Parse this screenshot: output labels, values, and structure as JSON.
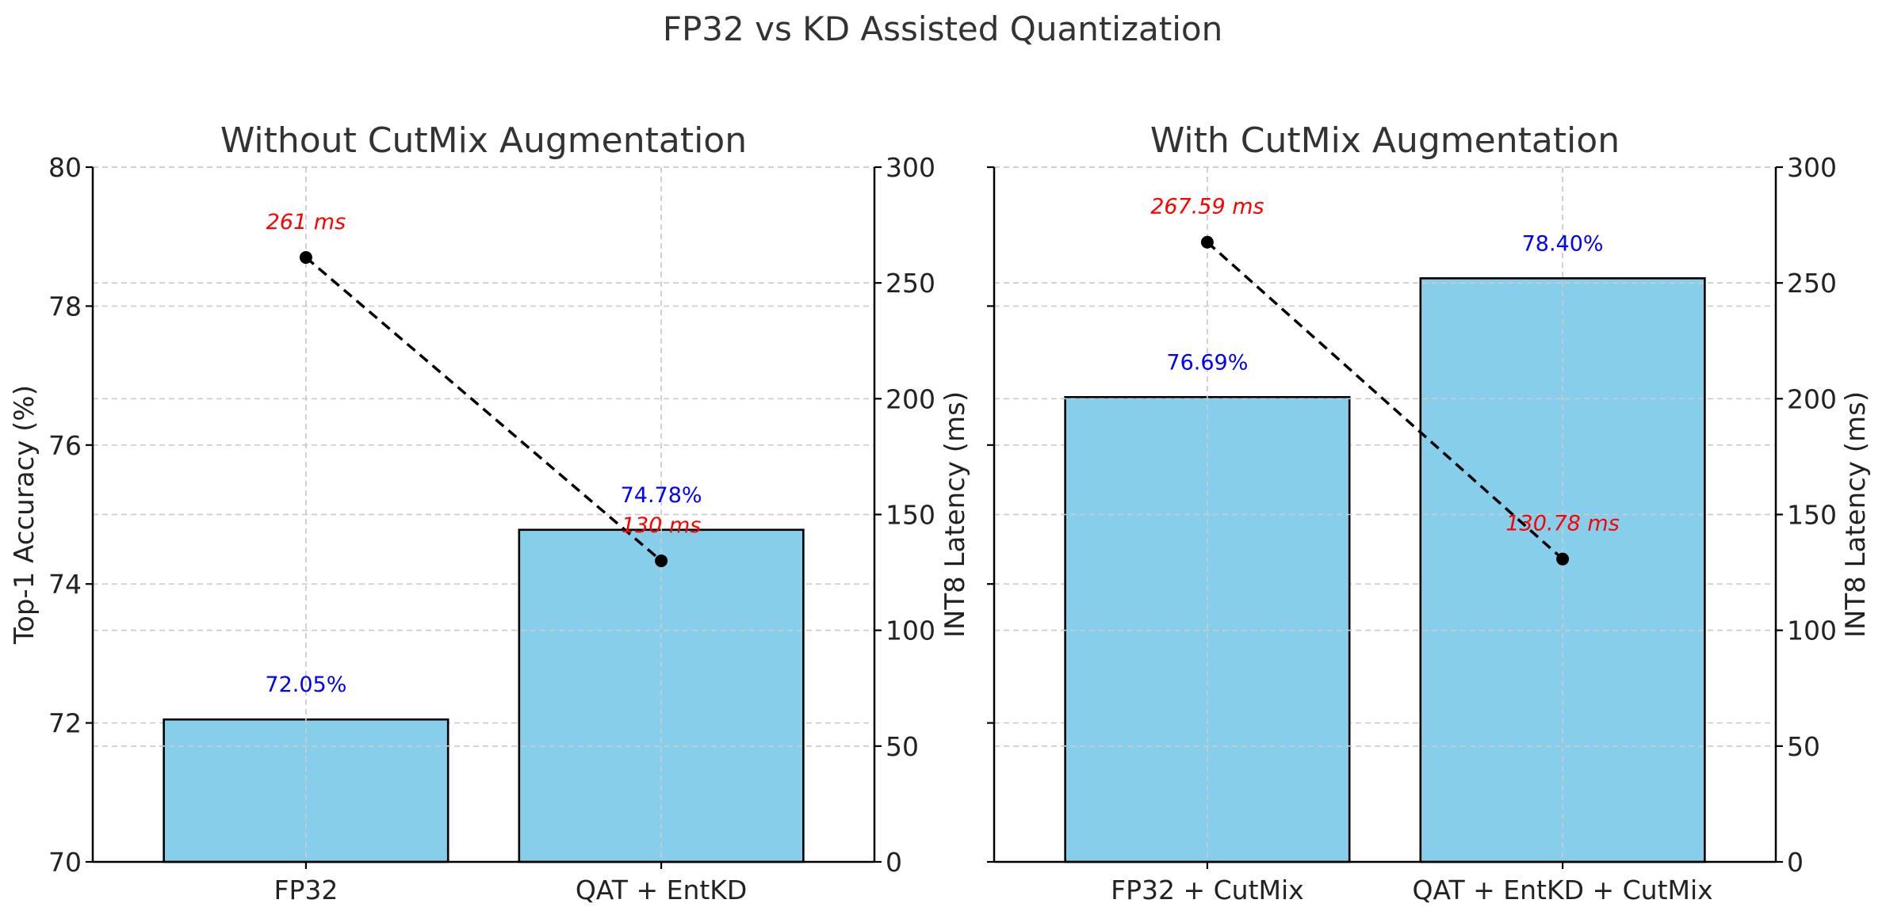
{
  "figure": {
    "title": "FP32 vs KD Assisted Quantization"
  },
  "chart_data": [
    {
      "type": "bar",
      "title": "Without CutMix Augmentation",
      "categories": [
        "FP32",
        "QAT + EntKD"
      ],
      "ylabel": "Top-1 Accuracy (%)",
      "ylim": [
        70,
        80
      ],
      "yticks": [
        70,
        72,
        74,
        76,
        78,
        80
      ],
      "series": [
        {
          "axis": "left",
          "kind": "bar",
          "values": [
            72.05,
            74.78
          ],
          "labels": [
            "72.05%",
            "74.78%"
          ],
          "color": "#87ceeb",
          "label_color": "#0000ff"
        },
        {
          "axis": "right",
          "kind": "line",
          "values": [
            261,
            130
          ],
          "labels": [
            "261 ms",
            "130 ms"
          ],
          "color": "#000000",
          "label_color": "#ff0000"
        }
      ],
      "y2label": "INT8 Latency (ms)",
      "y2lim": [
        0,
        300
      ],
      "y2ticks": [
        0,
        50,
        100,
        150,
        200,
        250,
        300
      ],
      "grid": true
    },
    {
      "type": "bar",
      "title": "With CutMix Augmentation",
      "categories": [
        "FP32 + CutMix",
        "QAT + EntKD + CutMix"
      ],
      "ylabel": "",
      "ylim": [
        70,
        80
      ],
      "yticks": [
        70,
        72,
        74,
        76,
        78,
        80
      ],
      "series": [
        {
          "axis": "left",
          "kind": "bar",
          "values": [
            76.69,
            78.4
          ],
          "labels": [
            "76.69%",
            "78.40%"
          ],
          "color": "#87ceeb",
          "label_color": "#0000ff"
        },
        {
          "axis": "right",
          "kind": "line",
          "values": [
            267.59,
            130.78
          ],
          "labels": [
            "267.59 ms",
            "130.78 ms"
          ],
          "color": "#000000",
          "label_color": "#ff0000"
        }
      ],
      "y2label": "INT8 Latency (ms)",
      "y2lim": [
        0,
        300
      ],
      "y2ticks": [
        0,
        50,
        100,
        150,
        200,
        250,
        300
      ],
      "grid": true
    }
  ]
}
